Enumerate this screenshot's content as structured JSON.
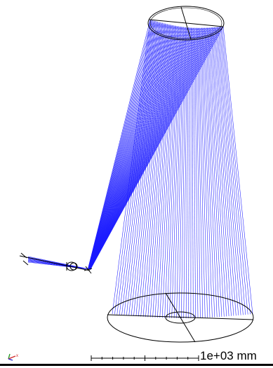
{
  "scale_bar": {
    "label": "1e+03 mm"
  },
  "colors": {
    "rays": "#1a1aff",
    "geometry": "#000000",
    "background": "#ffffff"
  },
  "icons": {
    "axis_triad": "axis-triad-icon"
  }
}
